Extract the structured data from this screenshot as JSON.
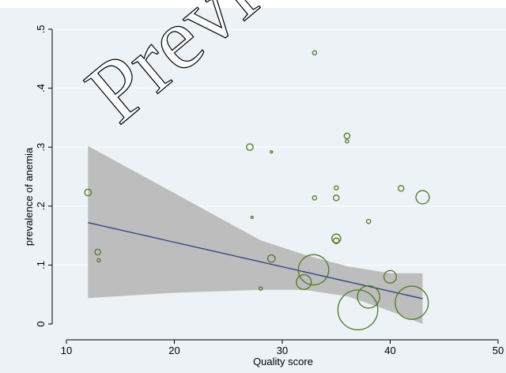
{
  "chart_data": {
    "type": "scatter",
    "title": "",
    "xlabel": "Quality score",
    "ylabel": "prevalence of anemia",
    "xlim": [
      10,
      50
    ],
    "ylim": [
      0,
      0.5
    ],
    "x_ticks": [
      10,
      20,
      30,
      40,
      50
    ],
    "x_tick_labels": [
      "10",
      "20",
      "30",
      "40",
      "50"
    ],
    "y_ticks": [
      0,
      0.1,
      0.2,
      0.3,
      0.4,
      0.5
    ],
    "y_tick_labels": [
      "0",
      ".1",
      ".2",
      ".3",
      ".4",
      ".5"
    ],
    "grid": true,
    "legend": "none",
    "colors": {
      "marker": "#4d7a1f",
      "fit_line": "#1f3f7a",
      "ci_band": "#bdbdbd",
      "background": "#ecf2f6",
      "grid": "#ffffff"
    },
    "points": [
      {
        "x": 12,
        "y": 0.223,
        "weight": 4
      },
      {
        "x": 12.9,
        "y": 0.122,
        "weight": 3
      },
      {
        "x": 13,
        "y": 0.108,
        "weight": 1
      },
      {
        "x": 27,
        "y": 0.3,
        "weight": 4
      },
      {
        "x": 27.2,
        "y": 0.181,
        "weight": 0.2
      },
      {
        "x": 28,
        "y": 0.06,
        "weight": 1
      },
      {
        "x": 29,
        "y": 0.292,
        "weight": 0.4
      },
      {
        "x": 29,
        "y": 0.111,
        "weight": 5
      },
      {
        "x": 32,
        "y": 0.071,
        "weight": 20
      },
      {
        "x": 32.9,
        "y": 0.092,
        "weight": 84
      },
      {
        "x": 33,
        "y": 0.46,
        "weight": 1.5
      },
      {
        "x": 33,
        "y": 0.214,
        "weight": 1.5
      },
      {
        "x": 35,
        "y": 0.231,
        "weight": 1.5
      },
      {
        "x": 35,
        "y": 0.214,
        "weight": 3
      },
      {
        "x": 35,
        "y": 0.145,
        "weight": 7
      },
      {
        "x": 35,
        "y": 0.141,
        "weight": 3
      },
      {
        "x": 36,
        "y": 0.319,
        "weight": 3
      },
      {
        "x": 36,
        "y": 0.31,
        "weight": 1
      },
      {
        "x": 37,
        "y": 0.024,
        "weight": 144
      },
      {
        "x": 38,
        "y": 0.046,
        "weight": 45
      },
      {
        "x": 38,
        "y": 0.174,
        "weight": 1.5
      },
      {
        "x": 40,
        "y": 0.08,
        "weight": 14
      },
      {
        "x": 41,
        "y": 0.23,
        "weight": 3
      },
      {
        "x": 42,
        "y": 0.036,
        "weight": 100
      },
      {
        "x": 43,
        "y": 0.215,
        "weight": 16
      }
    ],
    "fit_line": {
      "x": [
        12,
        43
      ],
      "y": [
        0.172,
        0.043
      ]
    },
    "ci_band": {
      "x": [
        12,
        20,
        28,
        32,
        36,
        40,
        43
      ],
      "upper": [
        0.302,
        0.222,
        0.142,
        0.118,
        0.098,
        0.086,
        0.086
      ],
      "lower": [
        0.044,
        0.053,
        0.058,
        0.058,
        0.047,
        0.022,
        0.0
      ]
    }
  },
  "watermark_text": "Preview only"
}
